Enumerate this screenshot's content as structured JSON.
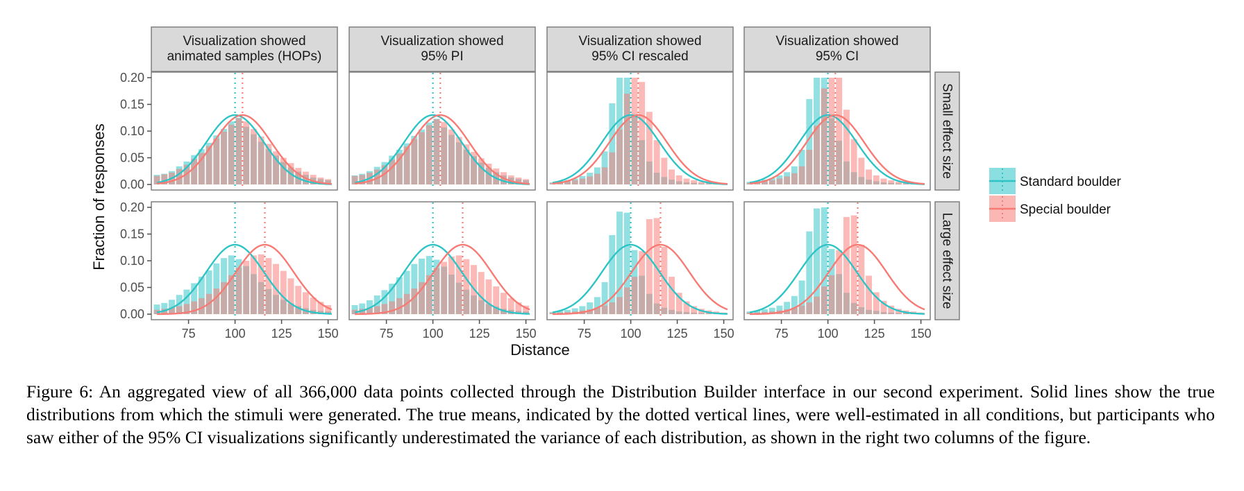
{
  "chart_data": {
    "type": "bar",
    "xlabel": "Distance",
    "ylabel": "Fraction of responses",
    "xlim": [
      55,
      155
    ],
    "ylim": [
      0,
      0.2
    ],
    "x_ticks": [
      75,
      100,
      125,
      150
    ],
    "y_ticks": [
      "0.00",
      "0.05",
      "0.10",
      "0.15",
      "0.20"
    ],
    "bins": [
      58,
      62,
      66,
      70,
      74,
      78,
      82,
      86,
      90,
      94,
      98,
      102,
      106,
      110,
      114,
      118,
      122,
      126,
      130,
      134,
      138,
      142,
      146,
      150
    ],
    "columns": [
      {
        "title": "Visualization showed\nanimated samples (HOPs)"
      },
      {
        "title": "Visualization showed\n95% PI"
      },
      {
        "title": "Visualization showed\n95% CI rescaled"
      },
      {
        "title": "Visualization showed\n95% CI"
      }
    ],
    "rows": [
      {
        "label": "Small effect size"
      },
      {
        "label": "Large effect size"
      }
    ],
    "series_styles": [
      {
        "name": "Standard boulder",
        "color": "#2ec4c6"
      },
      {
        "name": "Special boulder",
        "color": "#f77b74"
      }
    ],
    "panels": [
      {
        "row": 0,
        "col": 0,
        "means": [
          100,
          104
        ],
        "sd": 15.5,
        "peak": 0.13,
        "series": [
          {
            "name": "Standard boulder",
            "values": [
              0.018,
              0.02,
              0.025,
              0.034,
              0.043,
              0.055,
              0.066,
              0.078,
              0.092,
              0.104,
              0.118,
              0.125,
              0.108,
              0.094,
              0.08,
              0.066,
              0.054,
              0.042,
              0.032,
              0.024,
              0.018,
              0.013,
              0.01,
              0.008
            ]
          },
          {
            "name": "Special boulder",
            "values": [
              0.016,
              0.019,
              0.022,
              0.029,
              0.037,
              0.048,
              0.059,
              0.072,
              0.086,
              0.099,
              0.112,
              0.124,
              0.118,
              0.104,
              0.09,
              0.076,
              0.062,
              0.05,
              0.04,
              0.031,
              0.024,
              0.018,
              0.013,
              0.01
            ]
          }
        ]
      },
      {
        "row": 0,
        "col": 1,
        "means": [
          100,
          104
        ],
        "sd": 15.5,
        "peak": 0.13,
        "series": [
          {
            "name": "Standard boulder",
            "values": [
              0.017,
              0.02,
              0.025,
              0.033,
              0.042,
              0.054,
              0.065,
              0.077,
              0.091,
              0.103,
              0.116,
              0.123,
              0.107,
              0.093,
              0.079,
              0.065,
              0.053,
              0.041,
              0.031,
              0.023,
              0.017,
              0.013,
              0.01,
              0.008
            ]
          },
          {
            "name": "Special boulder",
            "values": [
              0.016,
              0.018,
              0.022,
              0.028,
              0.036,
              0.047,
              0.058,
              0.071,
              0.085,
              0.098,
              0.111,
              0.122,
              0.117,
              0.103,
              0.089,
              0.075,
              0.061,
              0.049,
              0.039,
              0.03,
              0.023,
              0.017,
              0.013,
              0.01
            ]
          }
        ]
      },
      {
        "row": 0,
        "col": 2,
        "means": [
          100,
          104
        ],
        "sd": 15.5,
        "peak": 0.13,
        "series": [
          {
            "name": "Standard boulder",
            "values": [
              0.004,
              0.006,
              0.008,
              0.011,
              0.016,
              0.022,
              0.032,
              0.062,
              0.152,
              0.2,
              0.2,
              0.127,
              0.083,
              0.043,
              0.022,
              0.014,
              0.009,
              0.006,
              0.004,
              0.003,
              0.002,
              0.002,
              0.001,
              0.001
            ]
          },
          {
            "name": "Special boulder",
            "values": [
              0.003,
              0.004,
              0.006,
              0.008,
              0.011,
              0.015,
              0.02,
              0.032,
              0.06,
              0.103,
              0.17,
              0.2,
              0.192,
              0.136,
              0.083,
              0.05,
              0.028,
              0.017,
              0.011,
              0.008,
              0.005,
              0.004,
              0.003,
              0.002
            ]
          }
        ]
      },
      {
        "row": 0,
        "col": 3,
        "means": [
          100,
          104
        ],
        "sd": 15.5,
        "peak": 0.13,
        "series": [
          {
            "name": "Standard boulder",
            "values": [
              0.005,
              0.007,
              0.009,
              0.012,
              0.017,
              0.023,
              0.034,
              0.065,
              0.16,
              0.2,
              0.2,
              0.124,
              0.082,
              0.043,
              0.023,
              0.014,
              0.009,
              0.006,
              0.004,
              0.003,
              0.002,
              0.002,
              0.001,
              0.001
            ]
          },
          {
            "name": "Special boulder",
            "values": [
              0.003,
              0.004,
              0.006,
              0.008,
              0.011,
              0.015,
              0.021,
              0.034,
              0.065,
              0.11,
              0.18,
              0.2,
              0.2,
              0.14,
              0.085,
              0.05,
              0.028,
              0.017,
              0.011,
              0.008,
              0.005,
              0.004,
              0.003,
              0.002
            ]
          }
        ]
      },
      {
        "row": 1,
        "col": 0,
        "means": [
          100,
          116
        ],
        "sd": 15.5,
        "peak": 0.13,
        "series": [
          {
            "name": "Standard boulder",
            "values": [
              0.018,
              0.021,
              0.027,
              0.036,
              0.046,
              0.058,
              0.07,
              0.082,
              0.095,
              0.105,
              0.11,
              0.103,
              0.09,
              0.075,
              0.06,
              0.047,
              0.036,
              0.027,
              0.02,
              0.015,
              0.011,
              0.008,
              0.006,
              0.005
            ]
          },
          {
            "name": "Special boulder",
            "values": [
              0.008,
              0.01,
              0.012,
              0.015,
              0.019,
              0.024,
              0.03,
              0.038,
              0.048,
              0.06,
              0.073,
              0.087,
              0.1,
              0.11,
              0.112,
              0.105,
              0.094,
              0.081,
              0.067,
              0.053,
              0.041,
              0.031,
              0.023,
              0.017
            ]
          }
        ]
      },
      {
        "row": 1,
        "col": 1,
        "means": [
          100,
          116
        ],
        "sd": 15.5,
        "peak": 0.13,
        "series": [
          {
            "name": "Standard boulder",
            "values": [
              0.017,
              0.02,
              0.026,
              0.035,
              0.045,
              0.057,
              0.069,
              0.081,
              0.094,
              0.104,
              0.109,
              0.102,
              0.089,
              0.074,
              0.059,
              0.046,
              0.035,
              0.026,
              0.019,
              0.014,
              0.01,
              0.008,
              0.006,
              0.005
            ]
          },
          {
            "name": "Special boulder",
            "values": [
              0.008,
              0.01,
              0.012,
              0.015,
              0.019,
              0.024,
              0.03,
              0.038,
              0.048,
              0.06,
              0.073,
              0.086,
              0.098,
              0.108,
              0.11,
              0.103,
              0.092,
              0.079,
              0.065,
              0.052,
              0.04,
              0.03,
              0.022,
              0.016
            ]
          }
        ]
      },
      {
        "row": 1,
        "col": 2,
        "means": [
          100,
          116
        ],
        "sd": 15.5,
        "peak": 0.13,
        "series": [
          {
            "name": "Standard boulder",
            "values": [
              0.004,
              0.006,
              0.008,
              0.011,
              0.015,
              0.022,
              0.032,
              0.06,
              0.148,
              0.192,
              0.19,
              0.12,
              0.072,
              0.038,
              0.02,
              0.012,
              0.008,
              0.005,
              0.004,
              0.003,
              0.002,
              0.002,
              0.001,
              0.001
            ]
          },
          {
            "name": "Special boulder",
            "values": [
              0.003,
              0.003,
              0.004,
              0.005,
              0.007,
              0.009,
              0.012,
              0.016,
              0.022,
              0.032,
              0.05,
              0.07,
              0.118,
              0.178,
              0.18,
              0.126,
              0.07,
              0.04,
              0.024,
              0.015,
              0.01,
              0.007,
              0.005,
              0.003
            ]
          }
        ]
      },
      {
        "row": 1,
        "col": 3,
        "means": [
          100,
          116
        ],
        "sd": 15.5,
        "peak": 0.13,
        "series": [
          {
            "name": "Standard boulder",
            "values": [
              0.005,
              0.007,
              0.009,
              0.012,
              0.016,
              0.023,
              0.034,
              0.063,
              0.155,
              0.198,
              0.2,
              0.122,
              0.075,
              0.04,
              0.021,
              0.013,
              0.008,
              0.006,
              0.004,
              0.003,
              0.002,
              0.002,
              0.001,
              0.001
            ]
          },
          {
            "name": "Special boulder",
            "values": [
              0.003,
              0.003,
              0.004,
              0.005,
              0.007,
              0.009,
              0.012,
              0.016,
              0.022,
              0.033,
              0.052,
              0.073,
              0.12,
              0.182,
              0.185,
              0.13,
              0.072,
              0.041,
              0.025,
              0.016,
              0.01,
              0.007,
              0.005,
              0.003
            ]
          }
        ]
      }
    ],
    "legend": [
      {
        "name": "Standard boulder",
        "color": "#2ec4c6"
      },
      {
        "name": "Special boulder",
        "color": "#f77b74"
      }
    ],
    "legend_position": "right",
    "grid": false
  },
  "caption": "Figure 6: An aggregated view of all 366,000 data points collected through the Distribution Builder interface in our second experiment. Solid lines show the true distributions from which the stimuli were generated. The true means, indicated by the dotted vertical lines, were well-estimated in all conditions, but participants who saw either of the 95% CI visualizations significantly underestimated the variance of each distribution, as shown in the right two columns of the figure."
}
